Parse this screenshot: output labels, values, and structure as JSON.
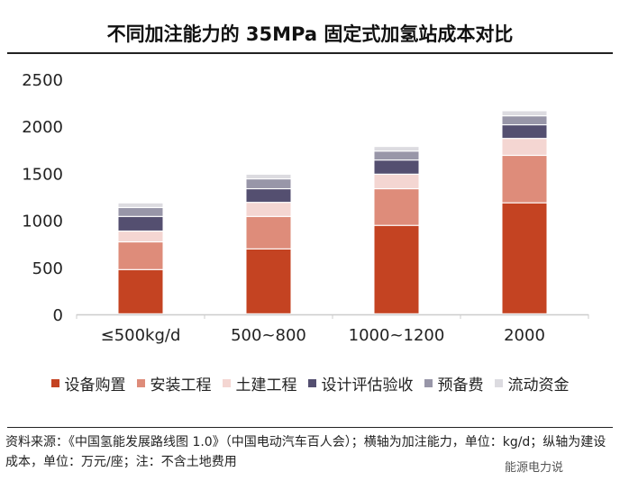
{
  "chart_data": {
    "type": "bar",
    "stacked": true,
    "title": "不同加注能力的 35MPa 固定式加氢站成本对比",
    "xlabel": "",
    "ylabel": "",
    "ylim": [
      0,
      2500
    ],
    "yticks": [
      "0",
      "500",
      "1000",
      "1500",
      "2000",
      "2500"
    ],
    "categories": [
      "≤500kg/d",
      "500~800",
      "1000~1200",
      "2000"
    ],
    "series": [
      {
        "name": "设备购置",
        "color": "#c44322",
        "values": [
          470,
          690,
          940,
          1180
        ]
      },
      {
        "name": "安装工程",
        "color": "#de8c7a",
        "values": [
          295,
          345,
          390,
          505
        ]
      },
      {
        "name": "土建工程",
        "color": "#f4d6d2",
        "values": [
          115,
          150,
          155,
          180
        ]
      },
      {
        "name": "设计评估验收",
        "color": "#544f70",
        "values": [
          155,
          145,
          150,
          145
        ]
      },
      {
        "name": "预备费",
        "color": "#9896a8",
        "values": [
          95,
          105,
          95,
          95
        ]
      },
      {
        "name": "流动资金",
        "color": "#dcdbe0",
        "values": [
          50,
          50,
          50,
          55
        ]
      }
    ],
    "legend": "bottom",
    "grid": false
  },
  "source": "资料来源：《中国氢能发展路线图 1.0》（中国电动汽车百人会）；横轴为加注能力，单位：kg/d；纵轴为建设成本，单位：万元/座；注：不含土地费用",
  "watermark": "能源电力说"
}
